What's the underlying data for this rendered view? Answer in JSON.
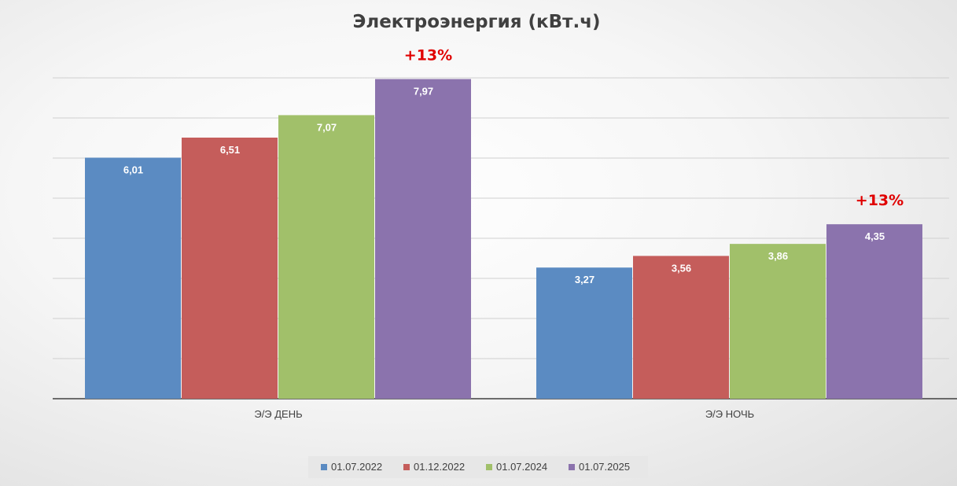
{
  "chart_data": {
    "type": "bar",
    "title": "Электроэнергия (кВт.ч)",
    "xlabel": "",
    "ylabel": "",
    "categories": [
      "Э/Э ДЕНЬ",
      "Э/Э НОЧЬ"
    ],
    "series": [
      {
        "name": "01.07.2022",
        "values": [
          6.01,
          3.27
        ],
        "labels": [
          "6,01",
          "3,27"
        ],
        "color": "#5b8bc2"
      },
      {
        "name": "01.12.2022",
        "values": [
          6.51,
          3.56
        ],
        "labels": [
          "6,51",
          "3,56"
        ],
        "color": "#c55d5b"
      },
      {
        "name": "01.07.2024",
        "values": [
          7.07,
          3.86
        ],
        "labels": [
          "7,07",
          "3,86"
        ],
        "color": "#a1c06a"
      },
      {
        "name": "01.07.2025",
        "values": [
          7.97,
          4.35
        ],
        "labels": [
          "7,97",
          "4,35"
        ],
        "color": "#8b73ad"
      }
    ],
    "ylim": [
      0,
      8
    ],
    "grid": true,
    "legend": "bottom",
    "annotations": [
      {
        "category": "Э/Э ДЕНЬ",
        "series": "01.07.2025",
        "text": "+13%"
      },
      {
        "category": "Э/Э НОЧЬ",
        "series": "01.07.2025",
        "text": "+13%"
      }
    ]
  }
}
